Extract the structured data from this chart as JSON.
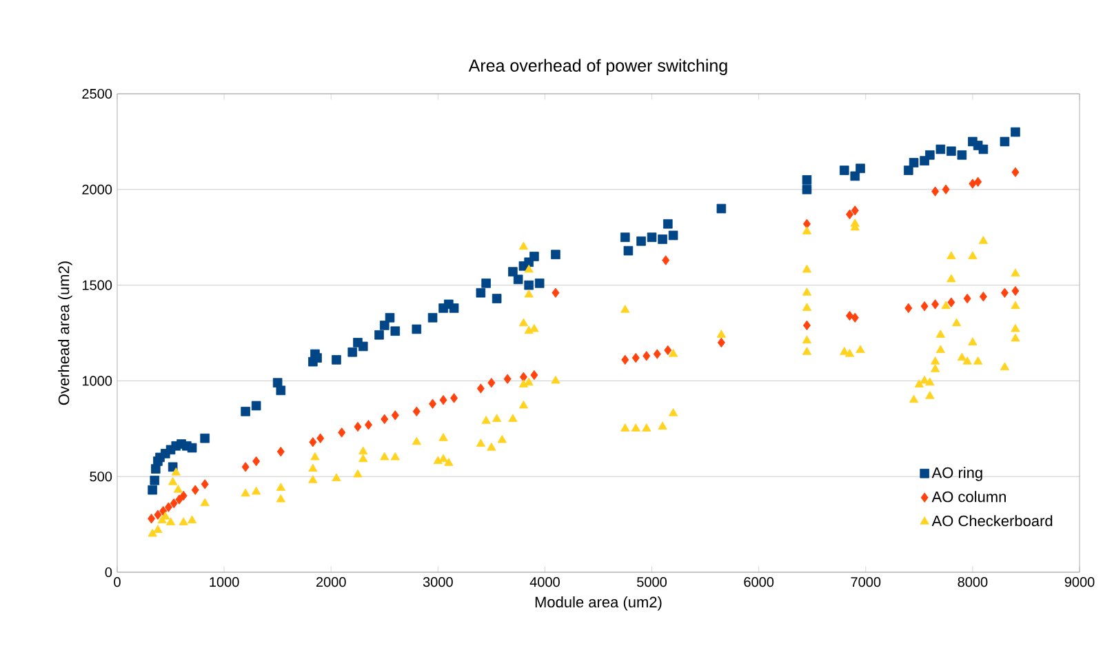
{
  "chart_data": {
    "type": "scatter",
    "title": "Area overhead of power switching",
    "xlabel": "Module area (um2)",
    "ylabel": "Overhead area (um2)",
    "xlim": [
      0,
      9000
    ],
    "xticks": [
      0,
      1000,
      2000,
      3000,
      4000,
      5000,
      6000,
      7000,
      8000,
      9000
    ],
    "ylim": [
      0,
      2500
    ],
    "yticks": [
      0,
      500,
      1000,
      1500,
      2000,
      2500
    ],
    "grid": "y",
    "legend": "bottom right",
    "series": [
      {
        "name": "AO ring",
        "color": "#004586",
        "marker": "square",
        "x": [
          330,
          350,
          360,
          380,
          400,
          450,
          500,
          520,
          550,
          600,
          650,
          700,
          820,
          1200,
          1300,
          1500,
          1530,
          1830,
          1850,
          1870,
          2050,
          2200,
          2250,
          2300,
          2450,
          2500,
          2550,
          2600,
          2800,
          2950,
          3050,
          3100,
          3150,
          3400,
          3450,
          3550,
          3700,
          3750,
          3800,
          3850,
          3850,
          3900,
          3950,
          4100,
          4750,
          4780,
          4900,
          5000,
          5100,
          5150,
          5200,
          5650,
          6450,
          6450,
          6800,
          6900,
          6950,
          7400,
          7450,
          7550,
          7600,
          7700,
          7800,
          7900,
          8000,
          8050,
          8100,
          8300,
          8400
        ],
        "values": [
          430,
          480,
          540,
          580,
          600,
          620,
          640,
          550,
          660,
          670,
          660,
          650,
          700,
          840,
          870,
          990,
          950,
          1100,
          1140,
          1120,
          1110,
          1150,
          1200,
          1180,
          1240,
          1290,
          1330,
          1260,
          1270,
          1330,
          1380,
          1400,
          1380,
          1460,
          1510,
          1430,
          1570,
          1530,
          1600,
          1620,
          1500,
          1650,
          1510,
          1660,
          1750,
          1680,
          1730,
          1750,
          1740,
          1820,
          1760,
          1900,
          2000,
          2050,
          2100,
          2070,
          2110,
          2100,
          2140,
          2150,
          2180,
          2210,
          2200,
          2180,
          2250,
          2230,
          2210,
          2250,
          2300
        ]
      },
      {
        "name": "AO column",
        "color": "#ff420e",
        "marker": "diamond",
        "x": [
          320,
          380,
          430,
          480,
          530,
          580,
          620,
          730,
          820,
          1200,
          1300,
          1530,
          1830,
          1900,
          2100,
          2250,
          2350,
          2500,
          2600,
          2800,
          2950,
          3050,
          3150,
          3400,
          3500,
          3650,
          3800,
          3900,
          4100,
          4750,
          4850,
          4950,
          5050,
          5150,
          5130,
          5650,
          6450,
          6450,
          6850,
          6900,
          6850,
          6900,
          7400,
          7550,
          7650,
          7800,
          7950,
          8100,
          8300,
          8400,
          7650,
          7750,
          8000,
          8050,
          8400
        ],
        "values": [
          280,
          300,
          320,
          340,
          360,
          380,
          400,
          430,
          460,
          550,
          580,
          630,
          680,
          700,
          730,
          760,
          770,
          800,
          820,
          840,
          880,
          900,
          910,
          960,
          990,
          1010,
          1020,
          1030,
          1460,
          1110,
          1120,
          1130,
          1140,
          1160,
          1630,
          1200,
          1290,
          1820,
          1340,
          1330,
          1870,
          1890,
          1380,
          1390,
          1400,
          1410,
          1430,
          1440,
          1460,
          1470,
          1990,
          2000,
          2030,
          2040,
          2090
        ]
      },
      {
        "name": "AO Checkerboard",
        "color": "#ffd320",
        "marker": "triangle",
        "x": [
          330,
          380,
          420,
          450,
          500,
          520,
          550,
          570,
          620,
          700,
          820,
          1200,
          1300,
          1530,
          1530,
          1830,
          1830,
          1850,
          2050,
          2250,
          2300,
          2300,
          2500,
          2600,
          2800,
          3000,
          3050,
          3050,
          3100,
          3400,
          3500,
          3600,
          3450,
          3550,
          3700,
          3800,
          3800,
          3850,
          3800,
          3850,
          3900,
          3800,
          3850,
          3850,
          4100,
          4750,
          4750,
          4850,
          4950,
          5100,
          5200,
          5200,
          5650,
          6450,
          6450,
          6450,
          6450,
          6450,
          6450,
          6800,
          6850,
          6900,
          6950,
          6900,
          7450,
          7500,
          7550,
          7600,
          7600,
          7650,
          7650,
          7700,
          7700,
          7750,
          7800,
          7800,
          7850,
          7900,
          7950,
          8000,
          8050,
          8100,
          8000,
          8300,
          8400,
          8400,
          8400,
          8400
        ],
        "values": [
          200,
          220,
          270,
          290,
          260,
          470,
          520,
          430,
          260,
          270,
          360,
          410,
          420,
          380,
          440,
          480,
          540,
          600,
          490,
          510,
          590,
          630,
          600,
          600,
          680,
          580,
          590,
          700,
          570,
          670,
          650,
          690,
          790,
          800,
          800,
          870,
          980,
          990,
          1300,
          1260,
          1270,
          1700,
          1580,
          1450,
          1000,
          1370,
          750,
          750,
          750,
          760,
          830,
          1140,
          1240,
          1780,
          1580,
          1460,
          1380,
          1150,
          1210,
          1150,
          1140,
          1800,
          1160,
          1820,
          900,
          980,
          1000,
          990,
          920,
          1060,
          1100,
          1160,
          1240,
          1390,
          1530,
          1650,
          1300,
          1120,
          1100,
          1200,
          1100,
          1730,
          1650,
          1070,
          1560,
          1390,
          1270,
          1220
        ]
      }
    ]
  }
}
